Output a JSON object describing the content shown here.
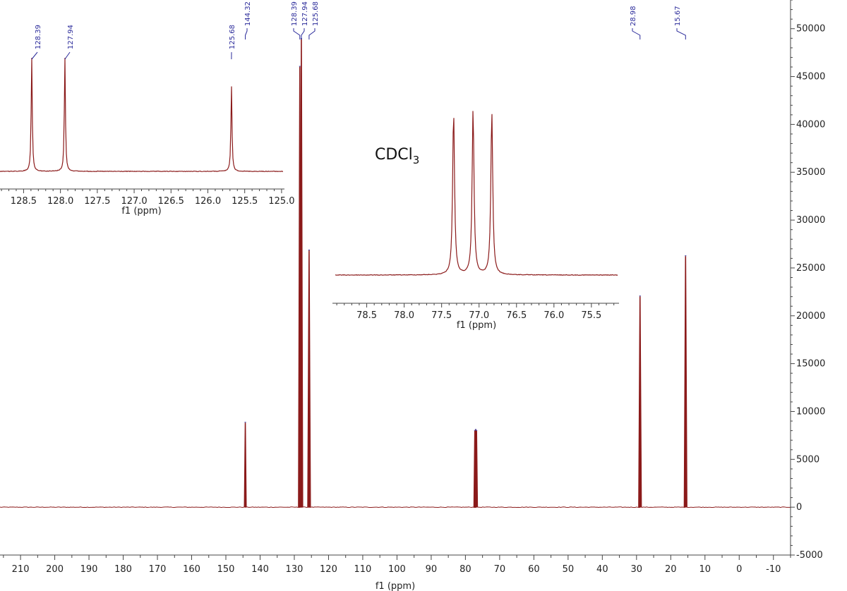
{
  "chart_data": {
    "type": "line",
    "solvent_label": "CDCl",
    "solvent_subscript": "3",
    "main": {
      "xlabel": "f1 (ppm)",
      "xlim": [
        -15,
        216
      ],
      "xticks": [
        210,
        200,
        190,
        180,
        170,
        160,
        150,
        140,
        130,
        120,
        110,
        100,
        90,
        80,
        70,
        60,
        50,
        40,
        30,
        20,
        10,
        0,
        -10
      ],
      "ylim": [
        -5000,
        53000
      ],
      "yticks": [
        -5000,
        0,
        5000,
        10000,
        15000,
        20000,
        25000,
        30000,
        35000,
        40000,
        45000,
        50000
      ],
      "peaks": [
        {
          "x": 144.32,
          "y": 8800
        },
        {
          "x": 128.39,
          "y": 46000
        },
        {
          "x": 127.94,
          "y": 48900
        },
        {
          "x": 125.68,
          "y": 26800
        },
        {
          "x": 77.25,
          "y": 7950
        },
        {
          "x": 77.0,
          "y": 8050
        },
        {
          "x": 76.75,
          "y": 7950
        },
        {
          "x": 28.98,
          "y": 22000
        },
        {
          "x": 15.67,
          "y": 26200
        }
      ],
      "peak_labels": [
        "144.32",
        "128.39",
        "127.94",
        "125.68",
        "28.98",
        "15.67"
      ]
    },
    "inset_aromatic": {
      "xlabel": "f1 (ppm)",
      "xlim": [
        124.98,
        128.82
      ],
      "xticks": [
        "128.5",
        "128.0",
        "127.5",
        "127.0",
        "126.5",
        "126.0",
        "125.5",
        "125.0"
      ],
      "peaks": [
        {
          "x": 128.39,
          "y": 1.0
        },
        {
          "x": 127.94,
          "y": 1.0
        },
        {
          "x": 125.68,
          "y": 0.75
        }
      ],
      "peak_labels": [
        "128.39",
        "127.94",
        "125.68"
      ]
    },
    "inset_solvent": {
      "xlabel": "f1 (ppm)",
      "xlim": [
        75.15,
        78.92
      ],
      "xticks": [
        "78.5",
        "78.0",
        "77.5",
        "77.0",
        "76.5",
        "76.0",
        "75.5"
      ],
      "peaks": [
        {
          "x": 77.34,
          "y": 0.97
        },
        {
          "x": 77.08,
          "y": 0.98
        },
        {
          "x": 76.83,
          "y": 0.97
        }
      ]
    },
    "line_color": "#8b1a1a",
    "label_color": "#2a2a9a"
  }
}
